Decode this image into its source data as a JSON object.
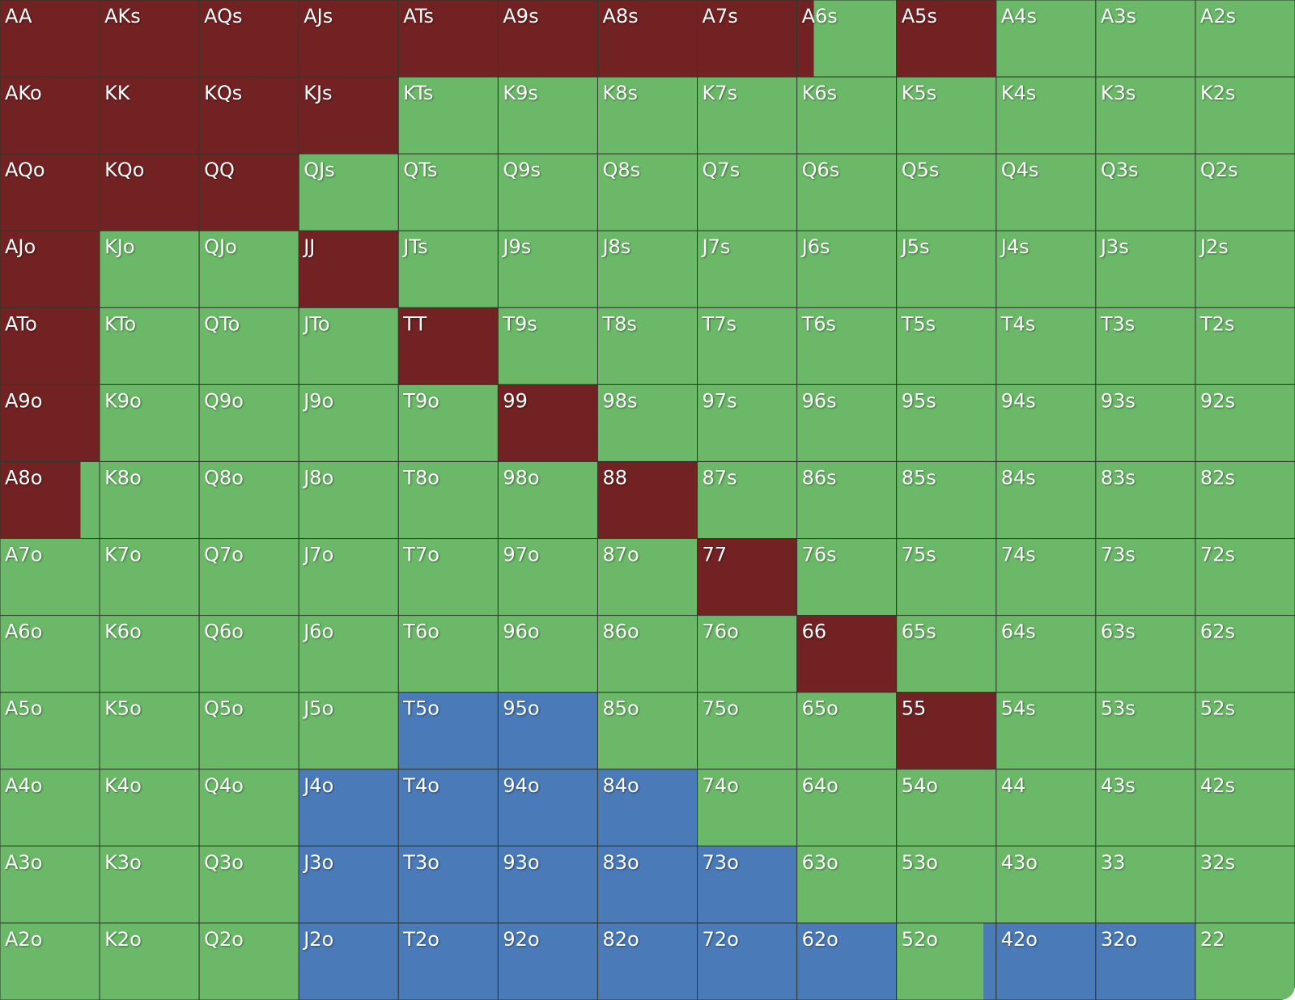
{
  "colors": [
    "#722222",
    "#6bb968",
    "#4a7ab8"
  ],
  "grid": [
    [
      {
        "label": "AA",
        "freqs": [
          100,
          0,
          0
        ]
      },
      {
        "label": "AKs",
        "freqs": [
          100,
          0,
          0
        ]
      },
      {
        "label": "AQs",
        "freqs": [
          100,
          0,
          0
        ]
      },
      {
        "label": "AJs",
        "freqs": [
          100,
          0,
          0
        ]
      },
      {
        "label": "ATs",
        "freqs": [
          100,
          0,
          0
        ]
      },
      {
        "label": "A9s",
        "freqs": [
          100,
          0,
          0
        ]
      },
      {
        "label": "A8s",
        "freqs": [
          100,
          0,
          0
        ]
      },
      {
        "label": "A7s",
        "freqs": [
          100,
          0,
          0
        ]
      },
      {
        "label": "A6s",
        "freqs": [
          17,
          83,
          0
        ]
      },
      {
        "label": "A5s",
        "freqs": [
          100,
          0,
          0
        ]
      },
      {
        "label": "A4s",
        "freqs": [
          0,
          100,
          0
        ]
      },
      {
        "label": "A3s",
        "freqs": [
          0,
          100,
          0
        ]
      },
      {
        "label": "A2s",
        "freqs": [
          0,
          100,
          0
        ]
      }
    ],
    [
      {
        "label": "AKo",
        "freqs": [
          100,
          0,
          0
        ]
      },
      {
        "label": "KK",
        "freqs": [
          100,
          0,
          0
        ]
      },
      {
        "label": "KQs",
        "freqs": [
          100,
          0,
          0
        ]
      },
      {
        "label": "KJs",
        "freqs": [
          100,
          0,
          0
        ]
      },
      {
        "label": "KTs",
        "freqs": [
          0,
          100,
          0
        ]
      },
      {
        "label": "K9s",
        "freqs": [
          0,
          100,
          0
        ]
      },
      {
        "label": "K8s",
        "freqs": [
          0,
          100,
          0
        ]
      },
      {
        "label": "K7s",
        "freqs": [
          0,
          100,
          0
        ]
      },
      {
        "label": "K6s",
        "freqs": [
          0,
          100,
          0
        ]
      },
      {
        "label": "K5s",
        "freqs": [
          0,
          100,
          0
        ]
      },
      {
        "label": "K4s",
        "freqs": [
          0,
          100,
          0
        ]
      },
      {
        "label": "K3s",
        "freqs": [
          0,
          100,
          0
        ]
      },
      {
        "label": "K2s",
        "freqs": [
          0,
          100,
          0
        ]
      }
    ],
    [
      {
        "label": "AQo",
        "freqs": [
          100,
          0,
          0
        ]
      },
      {
        "label": "KQo",
        "freqs": [
          100,
          0,
          0
        ]
      },
      {
        "label": "QQ",
        "freqs": [
          100,
          0,
          0
        ]
      },
      {
        "label": "QJs",
        "freqs": [
          0,
          100,
          0
        ]
      },
      {
        "label": "QTs",
        "freqs": [
          0,
          100,
          0
        ]
      },
      {
        "label": "Q9s",
        "freqs": [
          0,
          100,
          0
        ]
      },
      {
        "label": "Q8s",
        "freqs": [
          0,
          100,
          0
        ]
      },
      {
        "label": "Q7s",
        "freqs": [
          0,
          100,
          0
        ]
      },
      {
        "label": "Q6s",
        "freqs": [
          0,
          100,
          0
        ]
      },
      {
        "label": "Q5s",
        "freqs": [
          0,
          100,
          0
        ]
      },
      {
        "label": "Q4s",
        "freqs": [
          0,
          100,
          0
        ]
      },
      {
        "label": "Q3s",
        "freqs": [
          0,
          100,
          0
        ]
      },
      {
        "label": "Q2s",
        "freqs": [
          0,
          100,
          0
        ]
      }
    ],
    [
      {
        "label": "AJo",
        "freqs": [
          100,
          0,
          0
        ]
      },
      {
        "label": "KJo",
        "freqs": [
          0,
          100,
          0
        ]
      },
      {
        "label": "QJo",
        "freqs": [
          0,
          100,
          0
        ]
      },
      {
        "label": "JJ",
        "freqs": [
          100,
          0,
          0
        ]
      },
      {
        "label": "JTs",
        "freqs": [
          0,
          100,
          0
        ]
      },
      {
        "label": "J9s",
        "freqs": [
          0,
          100,
          0
        ]
      },
      {
        "label": "J8s",
        "freqs": [
          0,
          100,
          0
        ]
      },
      {
        "label": "J7s",
        "freqs": [
          0,
          100,
          0
        ]
      },
      {
        "label": "J6s",
        "freqs": [
          0,
          100,
          0
        ]
      },
      {
        "label": "J5s",
        "freqs": [
          0,
          100,
          0
        ]
      },
      {
        "label": "J4s",
        "freqs": [
          0,
          100,
          0
        ]
      },
      {
        "label": "J3s",
        "freqs": [
          0,
          100,
          0
        ]
      },
      {
        "label": "J2s",
        "freqs": [
          0,
          100,
          0
        ]
      }
    ],
    [
      {
        "label": "ATo",
        "freqs": [
          100,
          0,
          0
        ]
      },
      {
        "label": "KTo",
        "freqs": [
          0,
          100,
          0
        ]
      },
      {
        "label": "QTo",
        "freqs": [
          0,
          100,
          0
        ]
      },
      {
        "label": "JTo",
        "freqs": [
          0,
          100,
          0
        ]
      },
      {
        "label": "TT",
        "freqs": [
          100,
          0,
          0
        ]
      },
      {
        "label": "T9s",
        "freqs": [
          0,
          100,
          0
        ]
      },
      {
        "label": "T8s",
        "freqs": [
          0,
          100,
          0
        ]
      },
      {
        "label": "T7s",
        "freqs": [
          0,
          100,
          0
        ]
      },
      {
        "label": "T6s",
        "freqs": [
          0,
          100,
          0
        ]
      },
      {
        "label": "T5s",
        "freqs": [
          0,
          100,
          0
        ]
      },
      {
        "label": "T4s",
        "freqs": [
          0,
          100,
          0
        ]
      },
      {
        "label": "T3s",
        "freqs": [
          0,
          100,
          0
        ]
      },
      {
        "label": "T2s",
        "freqs": [
          0,
          100,
          0
        ]
      }
    ],
    [
      {
        "label": "A9o",
        "freqs": [
          100,
          0,
          0
        ]
      },
      {
        "label": "K9o",
        "freqs": [
          0,
          100,
          0
        ]
      },
      {
        "label": "Q9o",
        "freqs": [
          0,
          100,
          0
        ]
      },
      {
        "label": "J9o",
        "freqs": [
          0,
          100,
          0
        ]
      },
      {
        "label": "T9o",
        "freqs": [
          0,
          100,
          0
        ]
      },
      {
        "label": "99",
        "freqs": [
          100,
          0,
          0
        ]
      },
      {
        "label": "98s",
        "freqs": [
          0,
          100,
          0
        ]
      },
      {
        "label": "97s",
        "freqs": [
          0,
          100,
          0
        ]
      },
      {
        "label": "96s",
        "freqs": [
          0,
          100,
          0
        ]
      },
      {
        "label": "95s",
        "freqs": [
          0,
          100,
          0
        ]
      },
      {
        "label": "94s",
        "freqs": [
          0,
          100,
          0
        ]
      },
      {
        "label": "93s",
        "freqs": [
          0,
          100,
          0
        ]
      },
      {
        "label": "92s",
        "freqs": [
          0,
          100,
          0
        ]
      }
    ],
    [
      {
        "label": "A8o",
        "freqs": [
          81,
          19,
          0
        ]
      },
      {
        "label": "K8o",
        "freqs": [
          0,
          100,
          0
        ]
      },
      {
        "label": "Q8o",
        "freqs": [
          0,
          100,
          0
        ]
      },
      {
        "label": "J8o",
        "freqs": [
          0,
          100,
          0
        ]
      },
      {
        "label": "T8o",
        "freqs": [
          0,
          100,
          0
        ]
      },
      {
        "label": "98o",
        "freqs": [
          0,
          100,
          0
        ]
      },
      {
        "label": "88",
        "freqs": [
          100,
          0,
          0
        ]
      },
      {
        "label": "87s",
        "freqs": [
          0,
          100,
          0
        ]
      },
      {
        "label": "86s",
        "freqs": [
          0,
          100,
          0
        ]
      },
      {
        "label": "85s",
        "freqs": [
          0,
          100,
          0
        ]
      },
      {
        "label": "84s",
        "freqs": [
          0,
          100,
          0
        ]
      },
      {
        "label": "83s",
        "freqs": [
          0,
          100,
          0
        ]
      },
      {
        "label": "82s",
        "freqs": [
          0,
          100,
          0
        ]
      }
    ],
    [
      {
        "label": "A7o",
        "freqs": [
          0,
          100,
          0
        ]
      },
      {
        "label": "K7o",
        "freqs": [
          0,
          100,
          0
        ]
      },
      {
        "label": "Q7o",
        "freqs": [
          0,
          100,
          0
        ]
      },
      {
        "label": "J7o",
        "freqs": [
          0,
          100,
          0
        ]
      },
      {
        "label": "T7o",
        "freqs": [
          0,
          100,
          0
        ]
      },
      {
        "label": "97o",
        "freqs": [
          0,
          100,
          0
        ]
      },
      {
        "label": "87o",
        "freqs": [
          0,
          100,
          0
        ]
      },
      {
        "label": "77",
        "freqs": [
          100,
          0,
          0
        ]
      },
      {
        "label": "76s",
        "freqs": [
          0,
          100,
          0
        ]
      },
      {
        "label": "75s",
        "freqs": [
          0,
          100,
          0
        ]
      },
      {
        "label": "74s",
        "freqs": [
          0,
          100,
          0
        ]
      },
      {
        "label": "73s",
        "freqs": [
          0,
          100,
          0
        ]
      },
      {
        "label": "72s",
        "freqs": [
          0,
          100,
          0
        ]
      }
    ],
    [
      {
        "label": "A6o",
        "freqs": [
          0,
          100,
          0
        ]
      },
      {
        "label": "K6o",
        "freqs": [
          0,
          100,
          0
        ]
      },
      {
        "label": "Q6o",
        "freqs": [
          0,
          100,
          0
        ]
      },
      {
        "label": "J6o",
        "freqs": [
          0,
          100,
          0
        ]
      },
      {
        "label": "T6o",
        "freqs": [
          0,
          100,
          0
        ]
      },
      {
        "label": "96o",
        "freqs": [
          0,
          100,
          0
        ]
      },
      {
        "label": "86o",
        "freqs": [
          0,
          100,
          0
        ]
      },
      {
        "label": "76o",
        "freqs": [
          0,
          100,
          0
        ]
      },
      {
        "label": "66",
        "freqs": [
          100,
          0,
          0
        ]
      },
      {
        "label": "65s",
        "freqs": [
          0,
          100,
          0
        ]
      },
      {
        "label": "64s",
        "freqs": [
          0,
          100,
          0
        ]
      },
      {
        "label": "63s",
        "freqs": [
          0,
          100,
          0
        ]
      },
      {
        "label": "62s",
        "freqs": [
          0,
          100,
          0
        ]
      }
    ],
    [
      {
        "label": "A5o",
        "freqs": [
          0,
          100,
          0
        ]
      },
      {
        "label": "K5o",
        "freqs": [
          0,
          100,
          0
        ]
      },
      {
        "label": "Q5o",
        "freqs": [
          0,
          100,
          0
        ]
      },
      {
        "label": "J5o",
        "freqs": [
          0,
          100,
          0
        ]
      },
      {
        "label": "T5o",
        "freqs": [
          0,
          0,
          100
        ]
      },
      {
        "label": "95o",
        "freqs": [
          0,
          0,
          100
        ]
      },
      {
        "label": "85o",
        "freqs": [
          0,
          100,
          0
        ]
      },
      {
        "label": "75o",
        "freqs": [
          0,
          100,
          0
        ]
      },
      {
        "label": "65o",
        "freqs": [
          0,
          100,
          0
        ]
      },
      {
        "label": "55",
        "freqs": [
          100,
          0,
          0
        ]
      },
      {
        "label": "54s",
        "freqs": [
          0,
          100,
          0
        ]
      },
      {
        "label": "53s",
        "freqs": [
          0,
          100,
          0
        ]
      },
      {
        "label": "52s",
        "freqs": [
          0,
          100,
          0
        ]
      }
    ],
    [
      {
        "label": "A4o",
        "freqs": [
          0,
          100,
          0
        ]
      },
      {
        "label": "K4o",
        "freqs": [
          0,
          100,
          0
        ]
      },
      {
        "label": "Q4o",
        "freqs": [
          0,
          100,
          0
        ]
      },
      {
        "label": "J4o",
        "freqs": [
          0,
          0,
          100
        ]
      },
      {
        "label": "T4o",
        "freqs": [
          0,
          0,
          100
        ]
      },
      {
        "label": "94o",
        "freqs": [
          0,
          0,
          100
        ]
      },
      {
        "label": "84o",
        "freqs": [
          0,
          0,
          100
        ]
      },
      {
        "label": "74o",
        "freqs": [
          0,
          100,
          0
        ]
      },
      {
        "label": "64o",
        "freqs": [
          0,
          100,
          0
        ]
      },
      {
        "label": "54o",
        "freqs": [
          0,
          100,
          0
        ]
      },
      {
        "label": "44",
        "freqs": [
          0,
          100,
          0
        ]
      },
      {
        "label": "43s",
        "freqs": [
          0,
          100,
          0
        ]
      },
      {
        "label": "42s",
        "freqs": [
          0,
          100,
          0
        ]
      }
    ],
    [
      {
        "label": "A3o",
        "freqs": [
          0,
          100,
          0
        ]
      },
      {
        "label": "K3o",
        "freqs": [
          0,
          100,
          0
        ]
      },
      {
        "label": "Q3o",
        "freqs": [
          0,
          100,
          0
        ]
      },
      {
        "label": "J3o",
        "freqs": [
          0,
          0,
          100
        ]
      },
      {
        "label": "T3o",
        "freqs": [
          0,
          0,
          100
        ]
      },
      {
        "label": "93o",
        "freqs": [
          0,
          0,
          100
        ]
      },
      {
        "label": "83o",
        "freqs": [
          0,
          0,
          100
        ]
      },
      {
        "label": "73o",
        "freqs": [
          0,
          0,
          100
        ]
      },
      {
        "label": "63o",
        "freqs": [
          0,
          100,
          0
        ]
      },
      {
        "label": "53o",
        "freqs": [
          0,
          100,
          0
        ]
      },
      {
        "label": "43o",
        "freqs": [
          0,
          100,
          0
        ]
      },
      {
        "label": "33",
        "freqs": [
          0,
          100,
          0
        ]
      },
      {
        "label": "32s",
        "freqs": [
          0,
          100,
          0
        ]
      }
    ],
    [
      {
        "label": "A2o",
        "freqs": [
          0,
          100,
          0
        ]
      },
      {
        "label": "K2o",
        "freqs": [
          0,
          100,
          0
        ]
      },
      {
        "label": "Q2o",
        "freqs": [
          0,
          100,
          0
        ]
      },
      {
        "label": "J2o",
        "freqs": [
          0,
          0,
          100
        ]
      },
      {
        "label": "T2o",
        "freqs": [
          0,
          0,
          100
        ]
      },
      {
        "label": "92o",
        "freqs": [
          0,
          0,
          100
        ]
      },
      {
        "label": "82o",
        "freqs": [
          0,
          0,
          100
        ]
      },
      {
        "label": "72o",
        "freqs": [
          0,
          0,
          100
        ]
      },
      {
        "label": "62o",
        "freqs": [
          0,
          0,
          100
        ]
      },
      {
        "label": "52o",
        "freqs": [
          0,
          87,
          13
        ]
      },
      {
        "label": "42o",
        "freqs": [
          0,
          0,
          100
        ]
      },
      {
        "label": "32o",
        "freqs": [
          0,
          0,
          100
        ]
      },
      {
        "label": "22",
        "freqs": [
          0,
          100,
          0
        ]
      }
    ]
  ]
}
